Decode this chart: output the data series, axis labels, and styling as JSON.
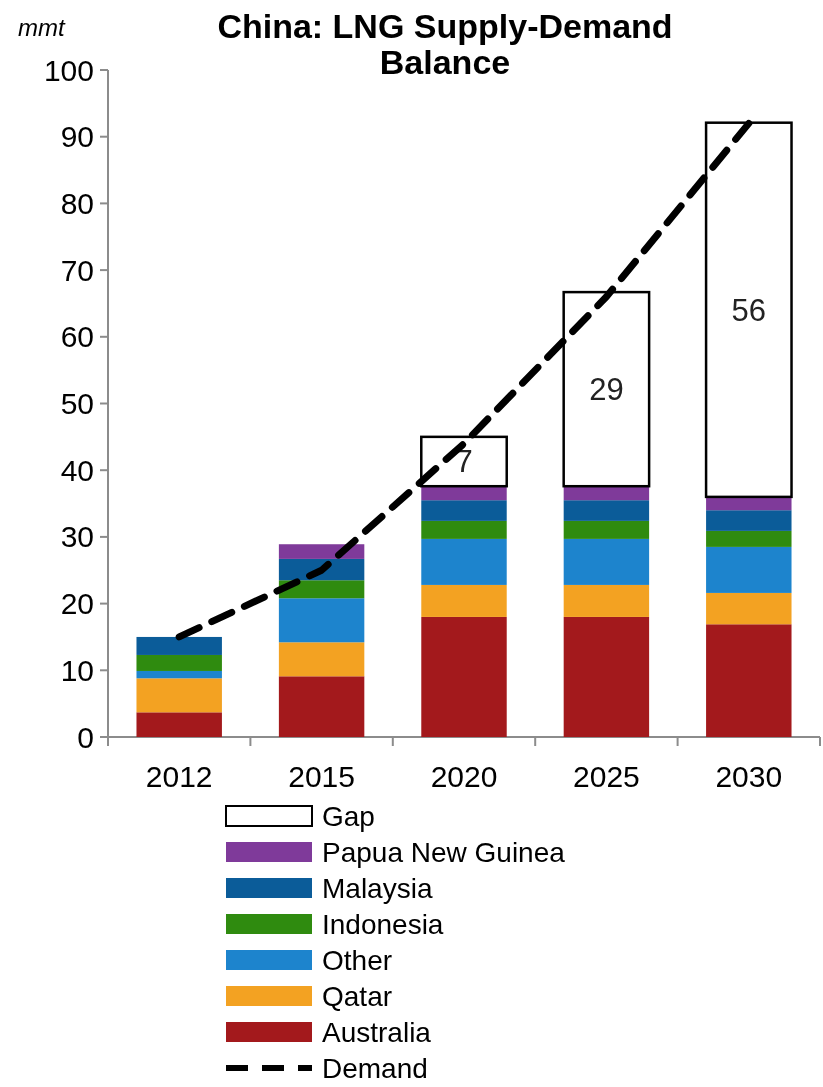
{
  "chart_data": {
    "type": "bar",
    "title": "China: LNG Supply-Demand Balance",
    "ylabel": "mmt",
    "categories": [
      "2012",
      "2015",
      "2020",
      "2025",
      "2030"
    ],
    "stacked": true,
    "ylim": [
      0,
      100
    ],
    "yticks": [
      0,
      10,
      20,
      30,
      40,
      50,
      60,
      70,
      80,
      90,
      100
    ],
    "legend": "bottom",
    "series": [
      {
        "name": "Australia",
        "color": "#a3191c",
        "values": [
          3.7,
          9.1,
          18.0,
          18.0,
          16.9
        ]
      },
      {
        "name": "Qatar",
        "color": "#f3a222",
        "values": [
          5.1,
          5.1,
          4.8,
          4.8,
          4.7
        ]
      },
      {
        "name": "Other",
        "color": "#1d84cd",
        "values": [
          1.1,
          6.6,
          6.9,
          6.9,
          6.9
        ]
      },
      {
        "name": "Indonesia",
        "color": "#2f8b0f",
        "values": [
          2.4,
          2.7,
          2.7,
          2.7,
          2.4
        ]
      },
      {
        "name": "Malaysia",
        "color": "#0b5c99",
        "values": [
          2.7,
          3.2,
          3.1,
          3.1,
          3.1
        ]
      },
      {
        "name": "Papua New Guinea",
        "color": "#7f3a9a",
        "values": [
          null,
          2.2,
          2.1,
          2.1,
          2.0
        ]
      },
      {
        "name": "Gap",
        "color": "#ffffff",
        "values": [
          null,
          null,
          7.4,
          29.1,
          56.1
        ],
        "value_labels": [
          null,
          null,
          "7",
          "29",
          "56"
        ]
      },
      {
        "name": "Demand",
        "type": "line",
        "color": "#000000",
        "line_style": "dashed",
        "marker": "none",
        "values": [
          15,
          25,
          44,
          66,
          92
        ]
      }
    ]
  }
}
